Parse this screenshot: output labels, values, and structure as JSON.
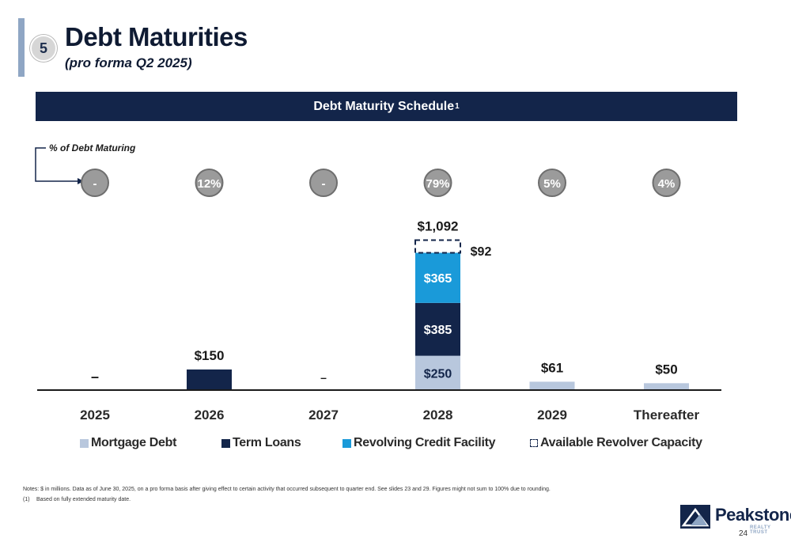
{
  "header": {
    "section_number": "5",
    "title": "Debt Maturities",
    "subtitle": "(pro forma Q2 2025)"
  },
  "banner": {
    "title": "Debt Maturity Schedule",
    "footnote_mark": "1"
  },
  "percent_label": "% of Debt Maturing",
  "chart_data": {
    "type": "bar",
    "stacked": true,
    "categories": [
      "2025",
      "2026",
      "2027",
      "2028",
      "2029",
      "Thereafter"
    ],
    "series": [
      {
        "name": "Mortgage Debt",
        "color": "#b8c7dd",
        "values": [
          0,
          0,
          0,
          250,
          61,
          50
        ]
      },
      {
        "name": "Term Loans",
        "color": "#13254a",
        "values": [
          0,
          150,
          0,
          385,
          0,
          0
        ]
      },
      {
        "name": "Revolving Credit Facility",
        "color": "#1a9ad9",
        "values": [
          0,
          0,
          0,
          365,
          0,
          0
        ]
      },
      {
        "name": "Available Revolver Capacity",
        "color": "#ffffff",
        "values": [
          0,
          0,
          0,
          92,
          0,
          0
        ],
        "dashed": true
      }
    ],
    "segment_labels": [
      {
        "category": "2028",
        "series": "Mortgage Debt",
        "text": "$250"
      },
      {
        "category": "2028",
        "series": "Term Loans",
        "text": "$385"
      },
      {
        "category": "2028",
        "series": "Revolving Credit Facility",
        "text": "$365"
      }
    ],
    "total_labels": [
      "–",
      "$150",
      "–",
      "$1,092",
      "$61",
      "$50"
    ],
    "side_labels": [
      {
        "category": "2028",
        "text": "$92"
      }
    ],
    "percent_maturing": [
      "-",
      "12%",
      "-",
      "79%",
      "5%",
      "4%"
    ],
    "ylim": [
      0,
      1100
    ],
    "legend_position": "bottom",
    "grid": false
  },
  "notes": {
    "main": "Notes: $ in millions. Data as of June 30, 2025, on a pro forma basis after giving effect to certain activity that occurred subsequent to quarter end. See slides 23 and 29. Figures might not sum to 100% due to rounding.",
    "footnotes": [
      {
        "num": "(1)",
        "text": "Based on fully extended maturity date."
      }
    ]
  },
  "logo": {
    "name": "Peakstone",
    "tagline": "REALTY TRUST"
  },
  "page_number": "24"
}
